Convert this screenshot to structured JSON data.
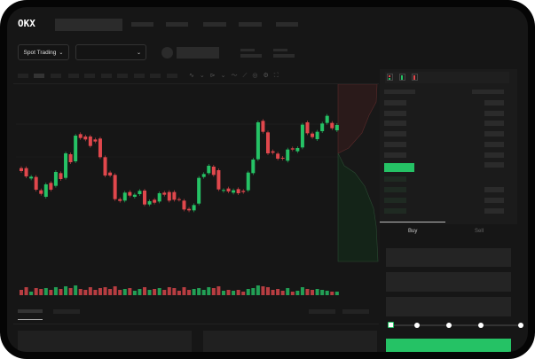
{
  "header": {
    "brand": "OKX",
    "nav_items": 5
  },
  "toolbar": {
    "market_button": "Spot Trading",
    "pair_dropdown": "",
    "chevron": "chevron-down-icon"
  },
  "chart_toolbar": {
    "icons": [
      "line-icon",
      "pen-icon",
      "wave-icon",
      "ruler-icon",
      "camera-icon",
      "gear-icon",
      "fullscreen-icon"
    ]
  },
  "chart_data": {
    "type": "candlestick",
    "colors": {
      "up": "#25c265",
      "down": "#e0474c"
    },
    "candles": [
      [
        185,
        175
      ],
      [
        185,
        157
      ],
      [
        150,
        156
      ],
      [
        155,
        112
      ],
      [
        110,
        98
      ],
      [
        88,
        130
      ],
      [
        135,
        112
      ],
      [
        125,
        172
      ],
      [
        168,
        148
      ],
      [
        152,
        235
      ],
      [
        232,
        205
      ],
      [
        208,
        295
      ],
      [
        300,
        287
      ],
      [
        292,
        282
      ],
      [
        292,
        260
      ],
      [
        282,
        275
      ],
      [
        285,
        222
      ],
      [
        222,
        160
      ],
      [
        170,
        160
      ],
      [
        162,
        80
      ],
      [
        80,
        74
      ],
      [
        75,
        102
      ],
      [
        104,
        92
      ],
      [
        88,
        95
      ],
      [
        97,
        108
      ],
      [
        109,
        62
      ],
      [
        62,
        73
      ],
      [
        78,
        68
      ],
      [
        72,
        100
      ],
      [
        102,
        95
      ],
      [
        104,
        75
      ],
      [
        104,
        78
      ],
      [
        80,
        78
      ],
      [
        75,
        45
      ],
      [
        47,
        42
      ],
      [
        42,
        60
      ],
      [
        65,
        152
      ],
      [
        155,
        165
      ],
      [
        168,
        193
      ],
      [
        190,
        162
      ],
      [
        178,
        113
      ],
      [
        108,
        111
      ],
      [
        116,
        106
      ],
      [
        102,
        110
      ],
      [
        114,
        100
      ],
      [
        108,
        104
      ],
      [
        110,
        170
      ],
      [
        168,
        214
      ],
      [
        215,
        340
      ],
      [
        345,
        308
      ],
      [
        306,
        235
      ],
      [
        242,
        237
      ],
      [
        234,
        217
      ],
      [
        220,
        217
      ],
      [
        210,
        248
      ],
      [
        252,
        248
      ],
      [
        242,
        253
      ],
      [
        255,
        332
      ],
      [
        340,
        303
      ],
      [
        302,
        290
      ],
      [
        283,
        308
      ],
      [
        310,
        336
      ],
      [
        338,
        362
      ],
      [
        338,
        320
      ],
      [
        313,
        331
      ]
    ],
    "volumes": [
      6,
      9,
      4,
      8,
      7,
      8,
      6,
      9,
      7,
      10,
      8,
      11,
      7,
      6,
      9,
      6,
      8,
      9,
      7,
      10,
      6,
      7,
      8,
      5,
      7,
      9,
      6,
      7,
      8,
      6,
      9,
      8,
      5,
      9,
      6,
      7,
      8,
      6,
      9,
      8,
      10,
      5,
      6,
      5,
      6,
      4,
      7,
      8,
      11,
      10,
      9,
      6,
      7,
      5,
      8,
      4,
      5,
      9,
      7,
      6,
      7,
      6,
      5,
      4,
      4
    ]
  },
  "order_book": {
    "header_icons": [
      "book-both-icon",
      "book-bids-icon",
      "book-asks-icon"
    ]
  },
  "trade_panel": {
    "tabs": [
      {
        "label": "Buy"
      },
      {
        "label": "Sell"
      }
    ],
    "accent": "#25c265",
    "leverage_fraction": 0
  }
}
